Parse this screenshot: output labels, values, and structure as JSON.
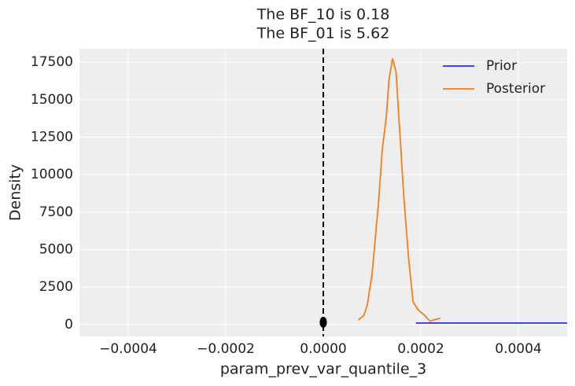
{
  "chart_data": {
    "type": "line",
    "title": [
      "The BF_10 is 0.18",
      "The BF_01 is 5.62"
    ],
    "xlabel": "param_prev_var_quantile_3",
    "ylabel": "Density",
    "xlim": [
      -0.0005,
      0.0005
    ],
    "ylim": [
      -800,
      18400
    ],
    "xticks": [
      {
        "value": -0.0004,
        "label": "−0.0004"
      },
      {
        "value": -0.0002,
        "label": "−0.0002"
      },
      {
        "value": 0,
        "label": "0.0000"
      },
      {
        "value": 0.0002,
        "label": "0.0002"
      },
      {
        "value": 0.0004,
        "label": "0.0004"
      }
    ],
    "yticks": [
      0,
      2500,
      5000,
      7500,
      10000,
      12500,
      15000,
      17500
    ],
    "grid": true,
    "legend": "upper right",
    "vline": 0,
    "series": [
      {
        "name": "Prior",
        "color": "#2a2eec",
        "x": [
          0.00019,
          0.0005
        ],
        "values": [
          100,
          100
        ]
      },
      {
        "name": "Posterior",
        "color": "#fa7c17",
        "x": [
          7.18e-05,
          8.3e-05,
          9e-05,
          0.0001,
          0.000113,
          0.000121,
          0.000129,
          0.000135,
          0.000142,
          0.000149,
          0.000155,
          0.000165,
          0.000175,
          0.000184,
          0.000194,
          0.000207,
          0.000219,
          0.000227,
          0.00024
        ],
        "values": [
          300,
          600,
          1250,
          3350,
          8050,
          11700,
          13800,
          16400,
          17750,
          16900,
          13800,
          8570,
          4390,
          1520,
          990,
          630,
          210,
          310,
          420
        ]
      }
    ],
    "points": {
      "color": "#000000",
      "x": [
        0,
        0
      ],
      "values": [
        200,
        100
      ]
    }
  }
}
